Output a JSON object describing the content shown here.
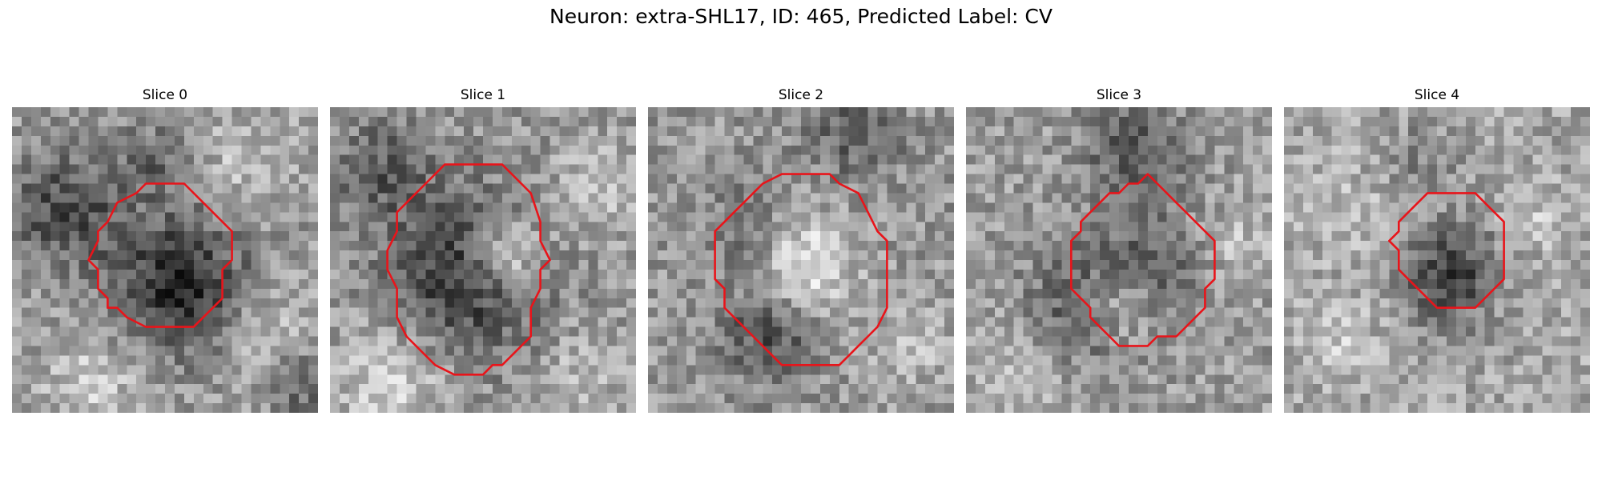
{
  "figure": {
    "title": "Neuron: extra-SHL17, ID: 465, Predicted Label: CV"
  },
  "panels": [
    {
      "title": "Slice 0"
    },
    {
      "title": "Slice 1"
    },
    {
      "title": "Slice 2"
    },
    {
      "title": "Slice 3"
    },
    {
      "title": "Slice 4"
    }
  ],
  "colors": {
    "contour": "#e8141a",
    "colormap": "grayscale"
  }
}
